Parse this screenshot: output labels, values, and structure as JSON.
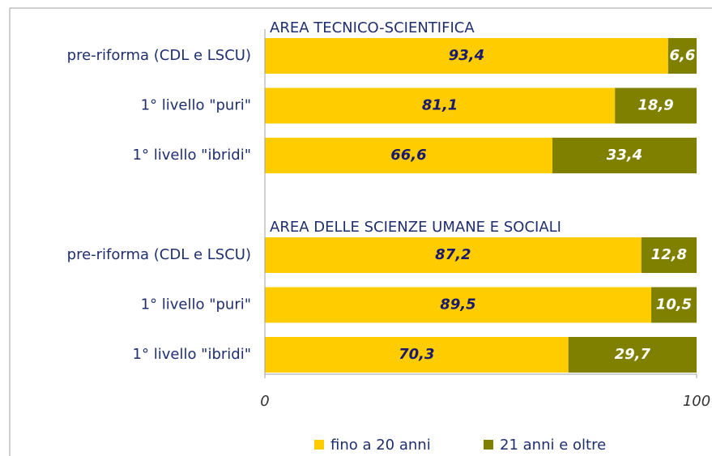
{
  "chart_data": {
    "type": "stacked-bar-horizontal",
    "annotations": [
      "AREA TECNICO-SCIENTIFICA",
      "AREA DELLE SCIENZE UMANE E SOCIALI"
    ],
    "categories": [
      "pre-riforma (CDL e LSCU)",
      "1° livello \"puri\"",
      "1° livello \"ibridi\"",
      "pre-riforma (CDL e LSCU)",
      "1° livello \"puri\"",
      "1° livello \"ibridi\""
    ],
    "series": [
      {
        "name": "fino a 20 anni",
        "color": "#ffcc00",
        "values": [
          93.4,
          81.1,
          66.6,
          87.2,
          89.5,
          70.3
        ],
        "value_labels": [
          "93,4",
          "81,1",
          "66,6",
          "87,2",
          "89,5",
          "70,3"
        ]
      },
      {
        "name": "21 anni e oltre",
        "color": "#808000",
        "values": [
          6.6,
          18.9,
          33.4,
          12.8,
          10.5,
          29.7
        ],
        "value_labels": [
          "6,6",
          "18,9",
          "33,4",
          "12,8",
          "10,5",
          "29,7"
        ]
      }
    ],
    "xlim": [
      0,
      100
    ],
    "xticks": [
      0,
      100
    ],
    "legend": "bottom"
  }
}
